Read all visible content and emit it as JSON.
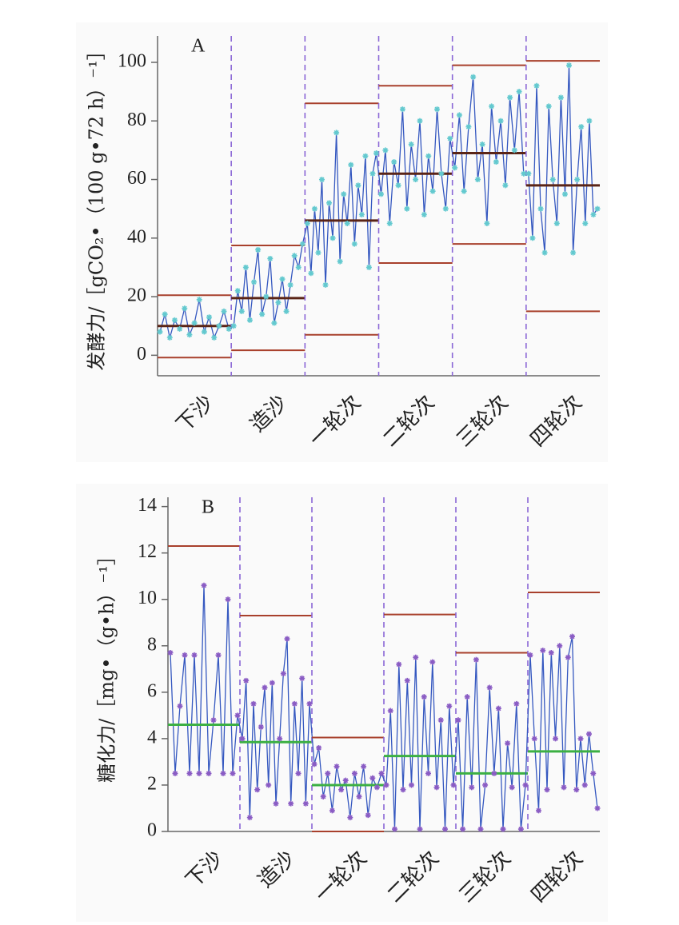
{
  "chart_data": [
    {
      "type": "line",
      "panel": "A",
      "y_label": "发酵力/［gCO₂•（100 g•72 h）⁻¹］",
      "ylim": [
        -7,
        109
      ],
      "yticks": [
        0,
        20,
        40,
        60,
        80,
        100
      ],
      "line_color": "#3558c0",
      "marker_color": "#63c9cf",
      "limit_color": "#a8402c",
      "mean_color": "#5a2416",
      "separator_color": "#8a66d6",
      "phases": [
        {
          "name": "下沙",
          "upper": 20.5,
          "mean": 10,
          "lower": -0.8,
          "values": [
            8,
            14,
            6,
            12,
            9,
            16,
            7,
            11,
            19,
            8,
            13,
            6,
            10,
            15,
            9
          ]
        },
        {
          "name": "造沙",
          "upper": 37.5,
          "mean": 19.5,
          "lower": 1.7,
          "values": [
            10,
            22,
            15,
            30,
            12,
            25,
            36,
            14,
            20,
            33,
            11,
            18,
            26,
            15,
            24,
            34,
            30,
            38
          ]
        },
        {
          "name": "一轮次",
          "upper": 86,
          "mean": 46,
          "lower": 7,
          "values": [
            45,
            28,
            50,
            35,
            60,
            24,
            52,
            40,
            76,
            32,
            55,
            45,
            65,
            38,
            58,
            48,
            68,
            30,
            62,
            69
          ]
        },
        {
          "name": "二轮次",
          "upper": 92,
          "mean": 62,
          "lower": 31.5,
          "values": [
            55,
            70,
            45,
            66,
            58,
            84,
            50,
            72,
            60,
            80,
            48,
            68,
            56,
            84,
            62,
            50,
            74
          ]
        },
        {
          "name": "三轮次",
          "upper": 99,
          "mean": 69,
          "lower": 38,
          "values": [
            64,
            82,
            56,
            78,
            95,
            60,
            72,
            45,
            85,
            66,
            80,
            58,
            88,
            70,
            90,
            62
          ]
        },
        {
          "name": "四轮次",
          "upper": 100.5,
          "mean": 58,
          "lower": 15,
          "values": [
            62,
            40,
            92,
            50,
            35,
            85,
            60,
            45,
            88,
            55,
            99,
            35,
            60,
            78,
            45,
            80,
            48,
            50
          ]
        }
      ]
    },
    {
      "type": "line",
      "panel": "B",
      "y_label": "糖化力/［mg•（g•h）⁻¹］",
      "ylim": [
        0,
        14.4
      ],
      "yticks": [
        0,
        2,
        4,
        6,
        8,
        10,
        12,
        14
      ],
      "line_color": "#3558c0",
      "marker_color": "#8a5cc4",
      "limit_color": "#a8402c",
      "mean_color": "#3cb043",
      "separator_color": "#8a66d6",
      "phases": [
        {
          "name": "下沙",
          "upper": 12.3,
          "mean": 4.6,
          "lower": null,
          "values": [
            7.7,
            2.5,
            5.4,
            7.6,
            2.5,
            7.6,
            2.5,
            10.6,
            2.5,
            4.8,
            7.6,
            2.5,
            10.0,
            2.5,
            5.0
          ]
        },
        {
          "name": "造沙",
          "upper": 9.3,
          "mean": 3.85,
          "lower": null,
          "values": [
            4.0,
            6.5,
            0.6,
            5.5,
            1.8,
            4.5,
            6.2,
            2.0,
            6.4,
            1.2,
            4.0,
            6.8,
            8.3,
            1.2,
            5.5,
            2.5,
            6.6,
            1.2,
            5.5
          ]
        },
        {
          "name": "一轮次",
          "upper": 4.05,
          "mean": 2.0,
          "lower": 0,
          "values": [
            2.9,
            3.6,
            1.5,
            2.5,
            0.9,
            2.8,
            1.8,
            2.2,
            0.6,
            2.5,
            1.5,
            2.8,
            0.7,
            2.3,
            1.9,
            2.5
          ]
        },
        {
          "name": "二轮次",
          "upper": 9.35,
          "mean": 3.25,
          "lower": null,
          "values": [
            2.0,
            5.2,
            0.1,
            7.2,
            1.8,
            6.5,
            2.0,
            7.5,
            0.1,
            5.8,
            2.5,
            7.3,
            1.9,
            4.8,
            0.1,
            5.4,
            2.0
          ]
        },
        {
          "name": "三轮次",
          "upper": 7.7,
          "mean": 2.5,
          "lower": null,
          "values": [
            4.8,
            0.1,
            5.8,
            1.9,
            7.4,
            0.1,
            2.0,
            6.2,
            2.5,
            5.3,
            0.1,
            3.8,
            1.9,
            5.5,
            0.1,
            2.0
          ]
        },
        {
          "name": "四轮次",
          "upper": 10.3,
          "mean": 3.45,
          "lower": null,
          "values": [
            7.6,
            4.0,
            0.9,
            7.8,
            1.8,
            7.7,
            4.0,
            8.0,
            1.9,
            7.5,
            8.4,
            1.8,
            4.0,
            2.0,
            4.2,
            2.5,
            1.0
          ]
        }
      ]
    }
  ]
}
